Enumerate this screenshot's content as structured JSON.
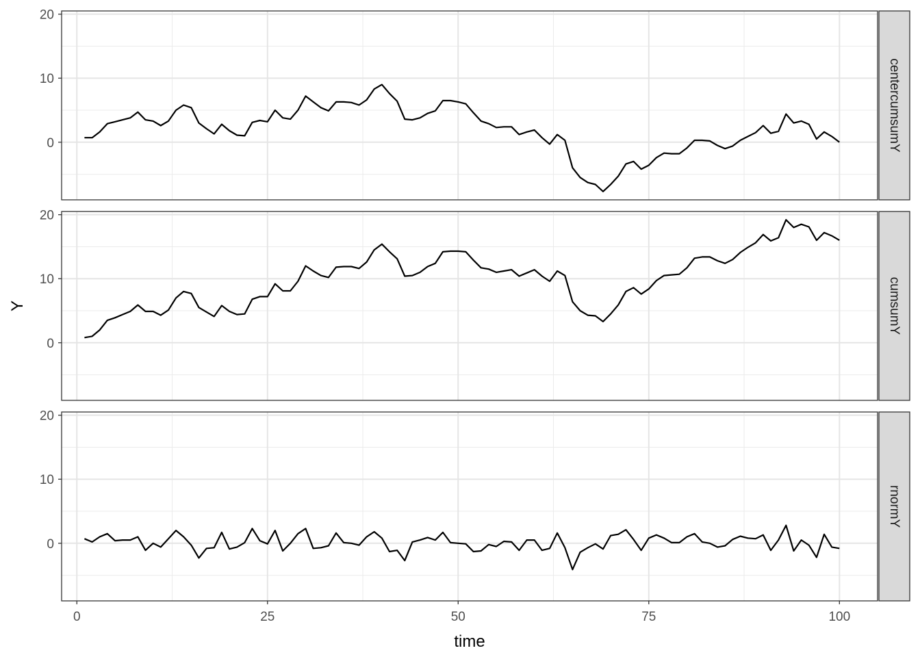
{
  "chart_data": {
    "type": "line",
    "facet_layout": "rows",
    "xlabel": "time",
    "ylabel": "Y",
    "xlim": [
      -2,
      105
    ],
    "ylim": [
      -9,
      20.5
    ],
    "x_ticks": [
      0,
      25,
      50,
      75,
      100
    ],
    "y_ticks": [
      0,
      10,
      20
    ],
    "grid": true,
    "line_color": "#000000",
    "strip_fill": "#d9d9d9",
    "panels": [
      {
        "strip": "centercumsumY",
        "x": [
          1,
          2,
          3,
          4,
          5,
          6,
          7,
          8,
          9,
          10,
          11,
          12,
          13,
          14,
          15,
          16,
          17,
          18,
          19,
          20,
          21,
          22,
          23,
          24,
          25,
          26,
          27,
          28,
          29,
          30,
          31,
          32,
          33,
          34,
          35,
          36,
          37,
          38,
          39,
          40,
          41,
          42,
          43,
          44,
          45,
          46,
          47,
          48,
          49,
          50,
          51,
          52,
          53,
          54,
          55,
          56,
          57,
          58,
          59,
          60,
          61,
          62,
          63,
          64,
          65,
          66,
          67,
          68,
          69,
          70,
          71,
          72,
          73,
          74,
          75,
          76,
          77,
          78,
          79,
          80,
          81,
          82,
          83,
          84,
          85,
          86,
          87,
          88,
          89,
          90,
          91,
          92,
          93,
          94,
          95,
          96,
          97,
          98,
          99,
          100
        ],
        "values": [
          0.7,
          0.7,
          1.6,
          2.9,
          3.2,
          3.5,
          3.8,
          4.7,
          3.5,
          3.3,
          2.6,
          3.3,
          5.0,
          5.8,
          5.4,
          3.0,
          2.1,
          1.3,
          2.8,
          1.8,
          1.1,
          1.0,
          3.1,
          3.4,
          3.2,
          5.0,
          3.8,
          3.6,
          5.0,
          7.2,
          6.3,
          5.4,
          4.9,
          6.3,
          6.3,
          6.2,
          5.8,
          6.6,
          8.3,
          9.0,
          7.6,
          6.4,
          3.6,
          3.5,
          3.8,
          4.5,
          4.9,
          6.5,
          6.5,
          6.3,
          6.0,
          4.6,
          3.3,
          2.9,
          2.3,
          2.4,
          2.4,
          1.2,
          1.6,
          1.9,
          0.7,
          -0.3,
          1.2,
          0.3,
          -4.0,
          -5.5,
          -6.3,
          -6.6,
          -7.7,
          -6.6,
          -5.3,
          -3.4,
          -3.0,
          -4.2,
          -3.6,
          -2.4,
          -1.7,
          -1.8,
          -1.8,
          -0.9,
          0.3,
          0.3,
          0.2,
          -0.5,
          -1.0,
          -0.6,
          0.3,
          0.9,
          1.5,
          2.6,
          1.4,
          1.7,
          4.4,
          3.0,
          3.3,
          2.8,
          0.5,
          1.6,
          0.9,
          0.0
        ]
      },
      {
        "strip": "cumsumY",
        "x": [
          1,
          2,
          3,
          4,
          5,
          6,
          7,
          8,
          9,
          10,
          11,
          12,
          13,
          14,
          15,
          16,
          17,
          18,
          19,
          20,
          21,
          22,
          23,
          24,
          25,
          26,
          27,
          28,
          29,
          30,
          31,
          32,
          33,
          34,
          35,
          36,
          37,
          38,
          39,
          40,
          41,
          42,
          43,
          44,
          45,
          46,
          47,
          48,
          49,
          50,
          51,
          52,
          53,
          54,
          55,
          56,
          57,
          58,
          59,
          60,
          61,
          62,
          63,
          64,
          65,
          66,
          67,
          68,
          69,
          70,
          71,
          72,
          73,
          74,
          75,
          76,
          77,
          78,
          79,
          80,
          81,
          82,
          83,
          84,
          85,
          86,
          87,
          88,
          89,
          90,
          91,
          92,
          93,
          94,
          95,
          96,
          97,
          98,
          99,
          100
        ],
        "values": [
          0.8,
          1.0,
          2.0,
          3.5,
          3.9,
          4.4,
          4.9,
          5.9,
          4.9,
          4.9,
          4.3,
          5.1,
          7.0,
          8.0,
          7.7,
          5.5,
          4.8,
          4.1,
          5.8,
          4.9,
          4.4,
          4.5,
          6.8,
          7.2,
          7.2,
          9.2,
          8.1,
          8.1,
          9.6,
          12.0,
          11.2,
          10.5,
          10.2,
          11.8,
          11.9,
          11.9,
          11.6,
          12.6,
          14.5,
          15.4,
          14.2,
          13.1,
          10.4,
          10.5,
          11.0,
          11.9,
          12.4,
          14.2,
          14.3,
          14.3,
          14.2,
          12.9,
          11.7,
          11.5,
          11.0,
          11.2,
          11.4,
          10.4,
          10.9,
          11.4,
          10.4,
          9.6,
          11.2,
          10.5,
          6.4,
          5.0,
          4.3,
          4.2,
          3.3,
          4.5,
          5.9,
          8.0,
          8.6,
          7.6,
          8.4,
          9.7,
          10.5,
          10.6,
          10.7,
          11.7,
          13.2,
          13.4,
          13.4,
          12.8,
          12.4,
          13.0,
          14.1,
          14.9,
          15.6,
          16.9,
          15.9,
          16.4,
          19.2,
          18.0,
          18.5,
          18.1,
          16.0,
          17.2,
          16.7,
          16.0
        ]
      },
      {
        "strip": "rnormY",
        "x": [
          1,
          2,
          3,
          4,
          5,
          6,
          7,
          8,
          9,
          10,
          11,
          12,
          13,
          14,
          15,
          16,
          17,
          18,
          19,
          20,
          21,
          22,
          23,
          24,
          25,
          26,
          27,
          28,
          29,
          30,
          31,
          32,
          33,
          34,
          35,
          36,
          37,
          38,
          39,
          40,
          41,
          42,
          43,
          44,
          45,
          46,
          47,
          48,
          49,
          50,
          51,
          52,
          53,
          54,
          55,
          56,
          57,
          58,
          59,
          60,
          61,
          62,
          63,
          64,
          65,
          66,
          67,
          68,
          69,
          70,
          71,
          72,
          73,
          74,
          75,
          76,
          77,
          78,
          79,
          80,
          81,
          82,
          83,
          84,
          85,
          86,
          87,
          88,
          89,
          90,
          91,
          92,
          93,
          94,
          95,
          96,
          97,
          98,
          99,
          100
        ],
        "values": [
          0.7,
          0.2,
          1.0,
          1.5,
          0.4,
          0.5,
          0.5,
          1.0,
          -1.1,
          0.0,
          -0.6,
          0.7,
          2.0,
          1.0,
          -0.3,
          -2.3,
          -0.8,
          -0.7,
          1.7,
          -0.9,
          -0.6,
          0.1,
          2.3,
          0.4,
          -0.1,
          2.0,
          -1.2,
          0.0,
          1.5,
          2.3,
          -0.8,
          -0.7,
          -0.4,
          1.6,
          0.1,
          0.0,
          -0.3,
          1.0,
          1.8,
          0.8,
          -1.3,
          -1.1,
          -2.7,
          0.2,
          0.5,
          0.9,
          0.5,
          1.7,
          0.1,
          0.0,
          -0.1,
          -1.3,
          -1.2,
          -0.2,
          -0.5,
          0.3,
          0.2,
          -1.1,
          0.5,
          0.5,
          -1.1,
          -0.8,
          1.6,
          -0.7,
          -4.1,
          -1.4,
          -0.7,
          -0.1,
          -0.9,
          1.2,
          1.4,
          2.1,
          0.6,
          -1.1,
          0.8,
          1.3,
          0.8,
          0.1,
          0.1,
          1.0,
          1.5,
          0.2,
          0.0,
          -0.6,
          -0.4,
          0.6,
          1.1,
          0.8,
          0.7,
          1.3,
          -1.1,
          0.5,
          2.8,
          -1.2,
          0.5,
          -0.3,
          -2.2,
          1.4,
          -0.6,
          -0.8
        ]
      }
    ]
  }
}
